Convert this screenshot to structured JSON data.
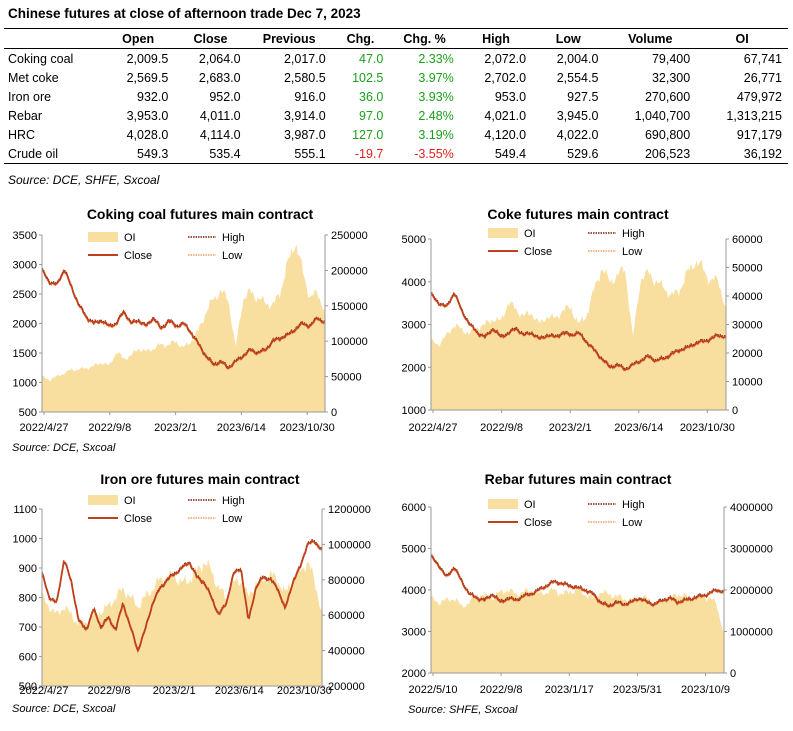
{
  "header": {
    "title": "Chinese futures at close of afternoon trade Dec 7, 2023"
  },
  "table": {
    "columns": [
      "",
      "Open",
      "Close",
      "Previous",
      "Chg.",
      "Chg. %",
      "High",
      "Low",
      "Volume",
      "OI"
    ],
    "rows": [
      [
        "Coking coal",
        "2,009.5",
        "2,064.0",
        "2,017.0",
        "47.0",
        "2.33%",
        "2,072.0",
        "2,004.0",
        "79,400",
        "67,741"
      ],
      [
        "Met coke",
        "2,569.5",
        "2,683.0",
        "2,580.5",
        "102.5",
        "3.97%",
        "2,702.0",
        "2,554.5",
        "32,300",
        "26,771"
      ],
      [
        "Iron ore",
        "932.0",
        "952.0",
        "916.0",
        "36.0",
        "3.93%",
        "953.0",
        "927.5",
        "270,600",
        "479,972"
      ],
      [
        "Rebar",
        "3,953.0",
        "4,011.0",
        "3,914.0",
        "97.0",
        "2.48%",
        "4,021.0",
        "3,945.0",
        "1,040,700",
        "1,313,215"
      ],
      [
        "HRC",
        "4,028.0",
        "4,114.0",
        "3,987.0",
        "127.0",
        "3.19%",
        "4,120.0",
        "4,022.0",
        "690,800",
        "917,179"
      ],
      [
        "Crude oil",
        "549.3",
        "535.4",
        "555.1",
        "-19.7",
        "-3.55%",
        "549.4",
        "529.6",
        "206,523",
        "36,192"
      ]
    ],
    "source": "Source: DCE, SHFE, Sxcoal"
  },
  "colors": {
    "oi": "#f8dfa0",
    "close": "#c0401c",
    "high": "#7a1e08",
    "low": "#f0a060",
    "positive": "#1aa01a",
    "negative": "#e0201a"
  },
  "legend": {
    "oi": "OI",
    "high": "High",
    "close": "Close",
    "low": "Low"
  },
  "chart_data": [
    {
      "type": "line",
      "title": "Coking coal futures main contract",
      "source": "Source: DCE, Sxcoal",
      "x_ticks": [
        "2022/4/27",
        "2022/9/8",
        "2023/2/1",
        "2023/6/14",
        "2023/10/30"
      ],
      "y_left_ticks": [
        "500",
        "1000",
        "1500",
        "2000",
        "2500",
        "3000",
        "3500"
      ],
      "y_left_range": [
        500,
        3500
      ],
      "y_right_ticks": [
        "0",
        "50000",
        "100000",
        "150000",
        "200000",
        "250000"
      ],
      "y_right_range": [
        0,
        250000
      ],
      "close_anchors": [
        2900,
        2700,
        2650,
        2920,
        2600,
        2300,
        2100,
        2000,
        2050,
        1950,
        2000,
        2200,
        2000,
        2050,
        1950,
        2100,
        1900,
        2050,
        1950,
        2000,
        1850,
        1650,
        1450,
        1300,
        1350,
        1250,
        1350,
        1450,
        1550,
        1500,
        1550,
        1700,
        1750,
        1800,
        1900,
        2000,
        1950,
        2100,
        2000
      ],
      "oi_anchors": [
        50000,
        45000,
        50000,
        55000,
        60000,
        60000,
        62000,
        65000,
        70000,
        65000,
        85000,
        75000,
        80000,
        90000,
        85000,
        90000,
        95000,
        95000,
        100000,
        90000,
        100000,
        115000,
        140000,
        160000,
        170000,
        160000,
        90000,
        160000,
        170000,
        160000,
        155000,
        150000,
        170000,
        210000,
        240000,
        200000,
        160000,
        170000,
        140000
      ]
    },
    {
      "type": "line",
      "title": "Coke futures main contract",
      "source": "",
      "x_ticks": [
        "2022/4/27",
        "2022/9/8",
        "2023/2/1",
        "2023/6/14",
        "2023/10/30"
      ],
      "y_left_ticks": [
        "1000",
        "2000",
        "3000",
        "4000",
        "5000"
      ],
      "y_left_range": [
        1000,
        5000
      ],
      "y_right_ticks": [
        "0",
        "10000",
        "20000",
        "30000",
        "40000",
        "50000",
        "60000"
      ],
      "y_right_range": [
        0,
        60000
      ],
      "close_anchors": [
        3700,
        3500,
        3400,
        3750,
        3300,
        3000,
        2800,
        2700,
        2900,
        2700,
        2800,
        2900,
        2750,
        2800,
        2650,
        2750,
        2700,
        2800,
        2750,
        2800,
        2600,
        2400,
        2200,
        2000,
        2050,
        1950,
        2050,
        2150,
        2250,
        2150,
        2200,
        2300,
        2400,
        2450,
        2550,
        2600,
        2650,
        2750,
        2700
      ],
      "oi_anchors": [
        24000,
        23000,
        26000,
        30000,
        28000,
        27000,
        29000,
        30000,
        32000,
        31000,
        38000,
        35000,
        33000,
        34000,
        30000,
        33000,
        32000,
        35000,
        36000,
        30000,
        33000,
        42000,
        50000,
        45000,
        47000,
        50000,
        25000,
        46000,
        48000,
        45000,
        43000,
        40000,
        42000,
        48000,
        52000,
        50000,
        45000,
        46000,
        35000
      ]
    },
    {
      "type": "line",
      "title": "Iron ore futures main contract",
      "source": "Source: DCE, Sxcoal",
      "x_ticks": [
        "2022/4/27",
        "2022/9/8",
        "2023/2/1",
        "2023/6/14",
        "2023/10/30"
      ],
      "y_left_ticks": [
        "500",
        "600",
        "700",
        "800",
        "900",
        "1000",
        "1100"
      ],
      "y_left_range": [
        500,
        1100
      ],
      "y_right_ticks": [
        "200000",
        "400000",
        "600000",
        "800000",
        "1000000",
        "1200000"
      ],
      "y_right_range": [
        200000,
        1200000
      ],
      "close_anchors": [
        880,
        800,
        780,
        930,
        850,
        720,
        690,
        760,
        700,
        730,
        690,
        780,
        700,
        620,
        690,
        780,
        830,
        860,
        880,
        900,
        920,
        870,
        850,
        800,
        740,
        780,
        880,
        900,
        720,
        830,
        870,
        860,
        830,
        760,
        850,
        900,
        980,
        990,
        960
      ],
      "oi_anchors": [
        700000,
        650000,
        600000,
        650000,
        600000,
        550000,
        560000,
        600000,
        620000,
        650000,
        700000,
        750000,
        700000,
        650000,
        700000,
        750000,
        800000,
        820000,
        820000,
        780000,
        800000,
        850000,
        900000,
        850000,
        750000,
        700000,
        780000,
        800000,
        700000,
        780000,
        800000,
        830000,
        800000,
        720000,
        800000,
        850000,
        900000,
        800000,
        600000
      ]
    },
    {
      "type": "line",
      "title": "Rebar futures main contract",
      "source": "Source: SHFE, Sxcoal",
      "x_ticks": [
        "2022/5/10",
        "2022/9/8",
        "2023/1/17",
        "2023/5/31",
        "2023/10/9"
      ],
      "y_left_ticks": [
        "2000",
        "3000",
        "4000",
        "5000",
        "6000"
      ],
      "y_left_range": [
        2000,
        6000
      ],
      "y_right_ticks": [
        "0",
        "1000000",
        "2000000",
        "3000000",
        "4000000"
      ],
      "y_right_range": [
        0,
        4000000
      ],
      "close_anchors": [
        4800,
        4600,
        4300,
        4550,
        4200,
        3900,
        3800,
        3750,
        3900,
        3700,
        3800,
        3750,
        3850,
        3900,
        4000,
        4100,
        4200,
        4150,
        4100,
        4050,
        4000,
        3900,
        3700,
        3600,
        3700,
        3650,
        3700,
        3800,
        3700,
        3650,
        3750,
        3800,
        3700,
        3750,
        3800,
        3850,
        3900,
        4000,
        3950
      ],
      "oi_anchors": [
        1800000,
        1700000,
        1750000,
        1800000,
        1600000,
        1700000,
        1900000,
        1850000,
        1800000,
        1950000,
        2000000,
        1900000,
        1950000,
        2000000,
        1900000,
        1950000,
        2000000,
        1900000,
        1950000,
        2000000,
        1900000,
        1800000,
        1950000,
        1900000,
        1850000,
        1800000,
        1750000,
        1850000,
        1800000,
        1700000,
        1750000,
        1800000,
        1900000,
        1850000,
        1800000,
        1850000,
        1800000,
        1700000,
        900000
      ]
    }
  ]
}
